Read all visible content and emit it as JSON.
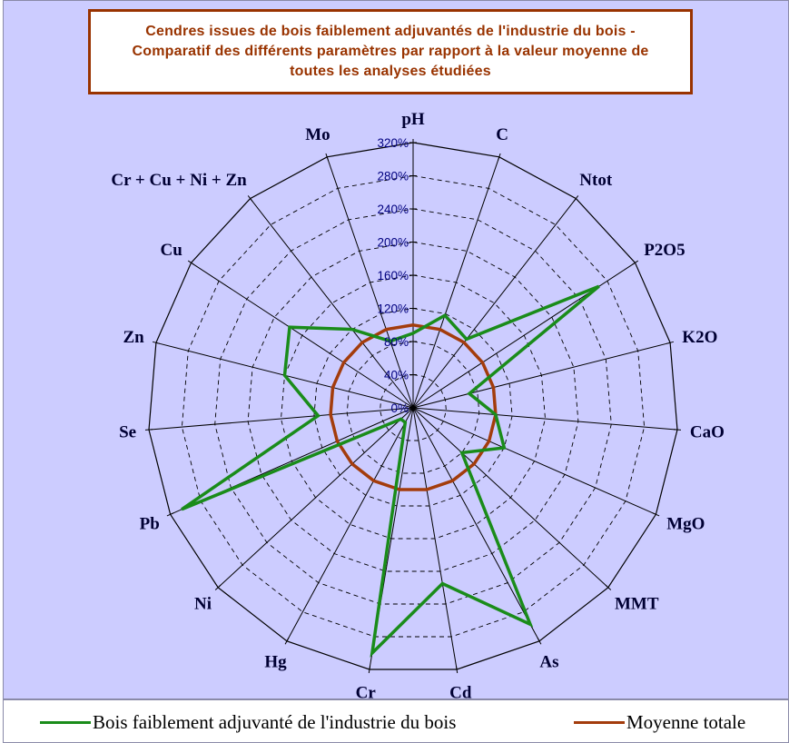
{
  "chart_data": {
    "type": "radar",
    "title": "Cendres issues de bois faiblement adjuvantés de l'industrie du bois -\nComparatif des différents paramètres par rapport à la valeur moyenne de\ntoutes les analyses étudiées",
    "categories": [
      "pH",
      "C",
      "Ntot",
      "P2O5",
      "K2O",
      "CaO",
      "MgO",
      "MMT",
      "As",
      "Cd",
      "Cr",
      "Hg",
      "Ni",
      "Pb",
      "Se",
      "Zn",
      "Cu",
      "Cr + Cu + Ni + Zn",
      "Mo"
    ],
    "rlim": [
      0,
      320
    ],
    "r_ticks": [
      "0%",
      "40%",
      "80%",
      "120%",
      "160%",
      "200%",
      "240%",
      "280%",
      "320%"
    ],
    "grid": true,
    "legend_position": "bottom",
    "series": [
      {
        "name": "Bois faiblement adjuvanté de l'industrie du bois",
        "color": "#1a8c1a",
        "values": [
          90,
          118,
          105,
          268,
          70,
          100,
          120,
          80,
          297,
          215,
          300,
          20,
          20,
          305,
          115,
          160,
          178,
          120,
          85
        ]
      },
      {
        "name": "Moyenne totale",
        "color": "#a33c0c",
        "values": [
          100,
          100,
          100,
          100,
          100,
          100,
          100,
          100,
          100,
          100,
          100,
          100,
          100,
          100,
          100,
          100,
          100,
          100,
          100
        ]
      }
    ]
  }
}
